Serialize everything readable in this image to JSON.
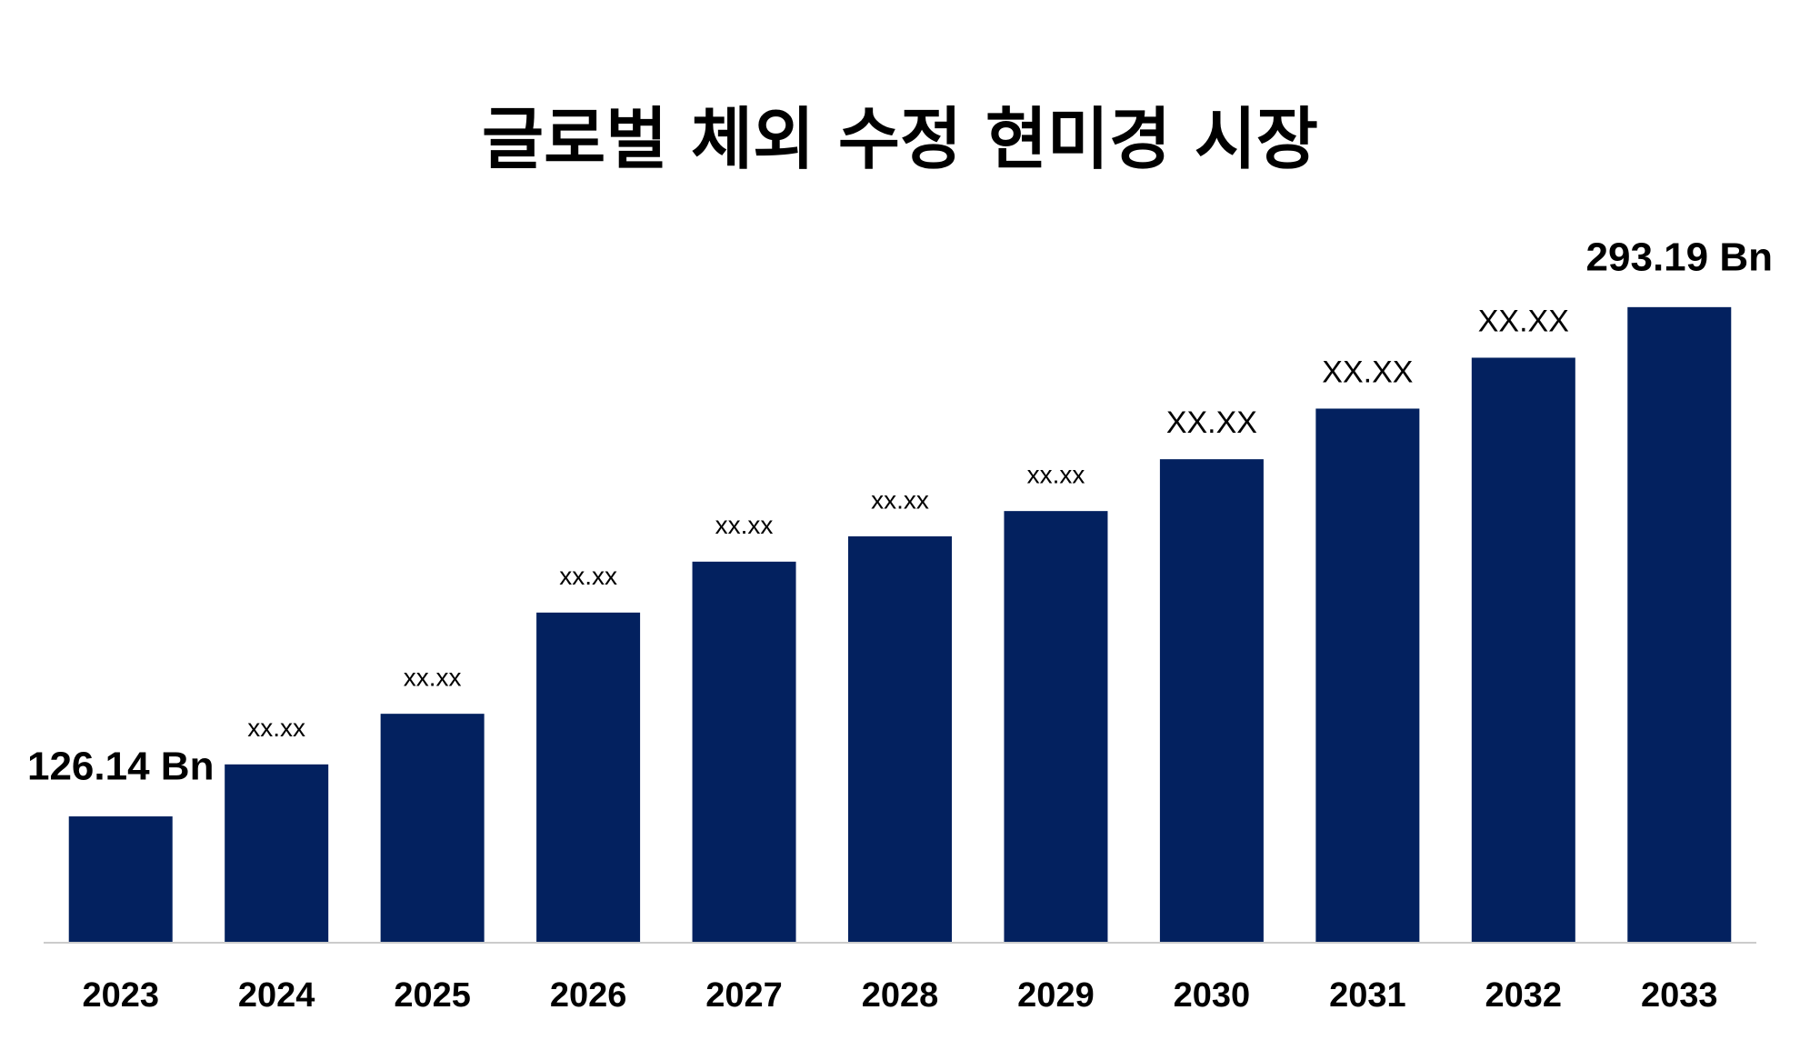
{
  "chart_data": {
    "type": "bar",
    "title": "글로벌 체외 수정 현미경 시장",
    "categories": [
      "2023",
      "2024",
      "2025",
      "2026",
      "2027",
      "2028",
      "2029",
      "2030",
      "2031",
      "2032",
      "2033"
    ],
    "values": [
      126.14,
      143.2,
      159.8,
      193.0,
      209.7,
      218.0,
      226.3,
      243.3,
      259.9,
      276.6,
      293.19
    ],
    "value_labels": [
      "126.14 Bn",
      "xx.xx",
      "xx.xx",
      "xx.xx",
      "xx.xx",
      "xx.xx",
      "xx.xx",
      "XX.XX",
      "XX.XX",
      "XX.XX",
      "293.19 Bn"
    ],
    "color": "#03215f",
    "ylim": [
      85,
      300
    ]
  }
}
